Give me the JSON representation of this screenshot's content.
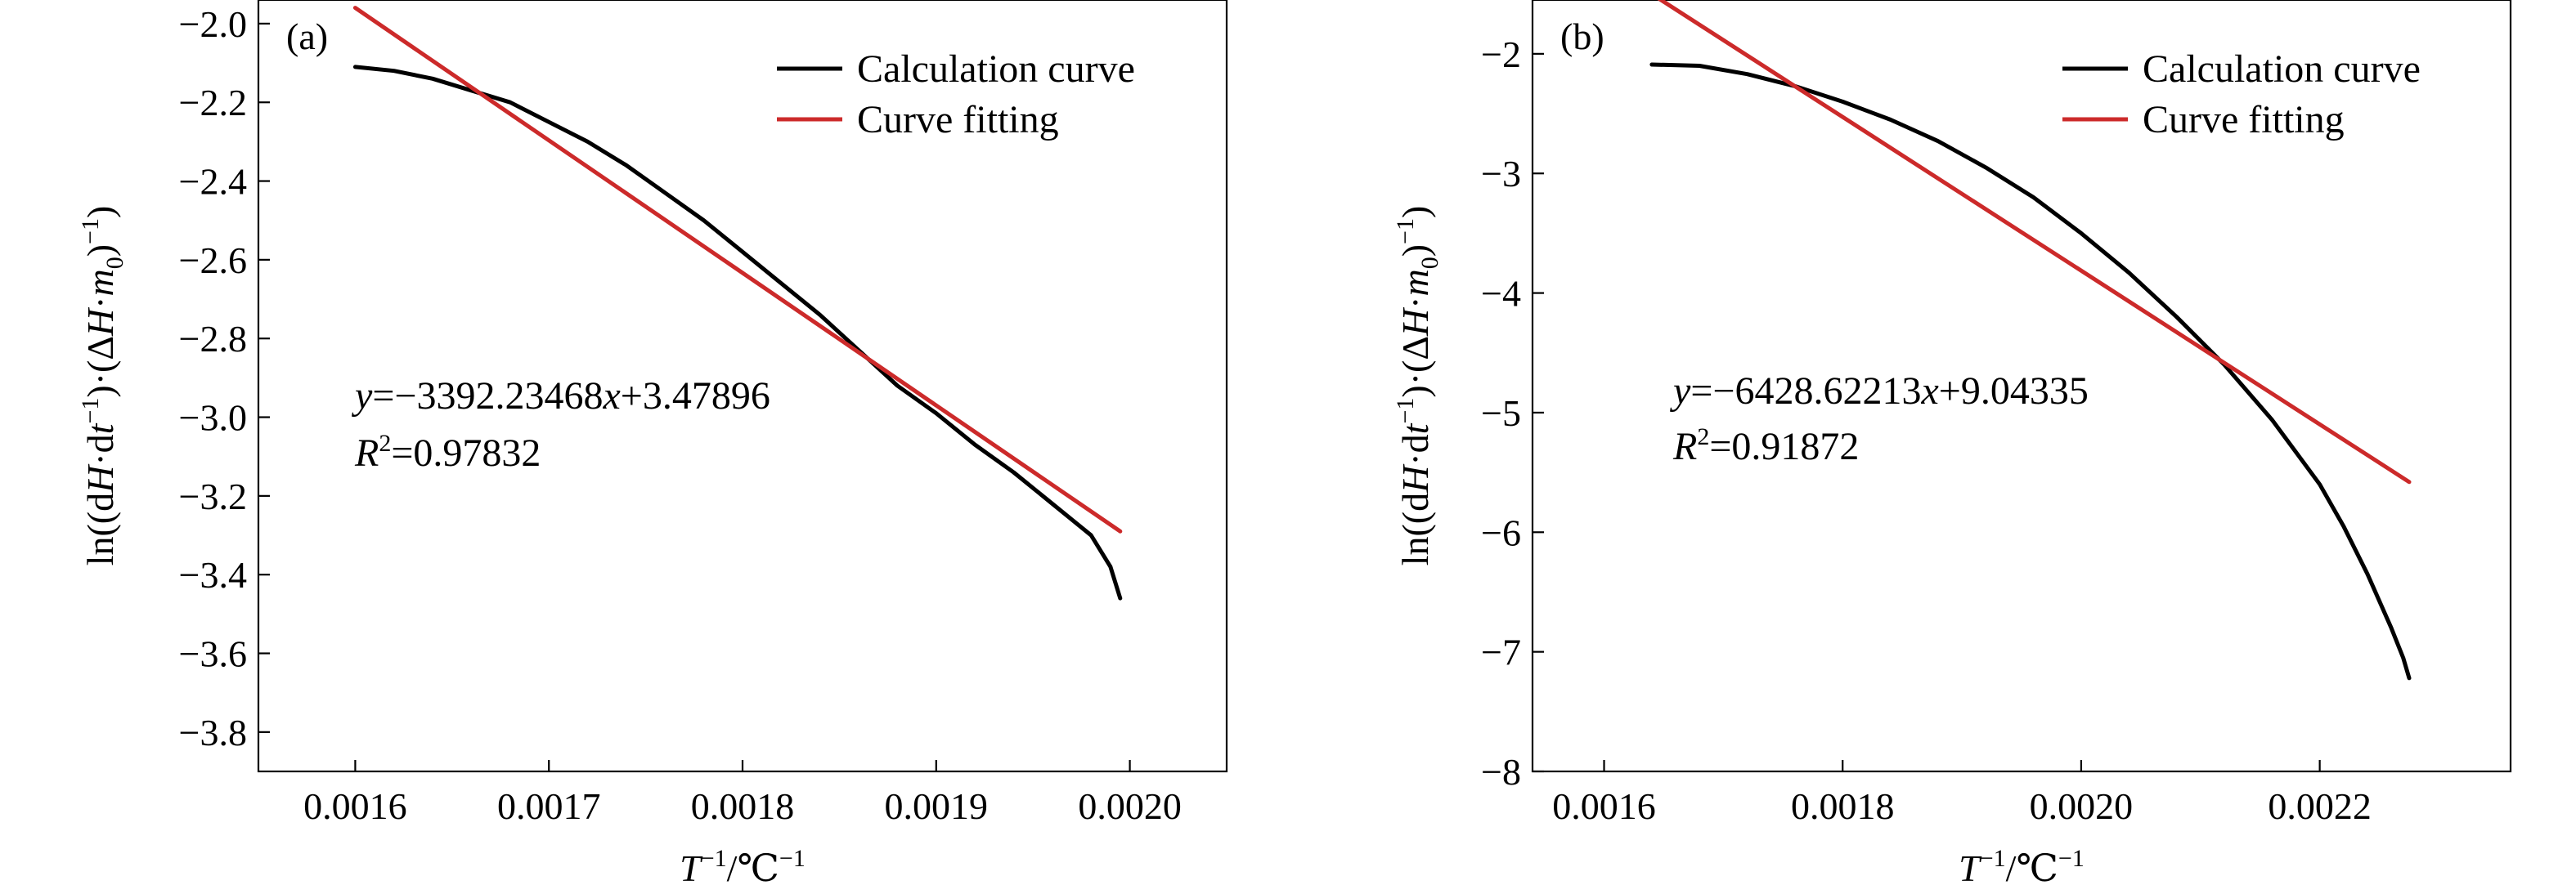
{
  "chart_data": [
    {
      "type": "line",
      "panel": "(a)",
      "xlabel_parts": [
        "T",
        "−1",
        "/℃",
        "−1"
      ],
      "ylabel_parts": [
        "ln((d",
        "H",
        "·d",
        "t",
        "−1",
        ")·(Δ",
        "H",
        "·",
        "m",
        "0",
        ")",
        "−1",
        ")"
      ],
      "xlim": [
        0.00155,
        0.00205
      ],
      "ylim": [
        -3.9,
        -1.94
      ],
      "xticks": [
        0.0016,
        0.0017,
        0.0018,
        0.0019,
        0.002
      ],
      "xtick_labels": [
        "0.0016",
        "0.0017",
        "0.0018",
        "0.0019",
        "0.0020"
      ],
      "yticks": [
        -2.0,
        -2.2,
        -2.4,
        -2.6,
        -2.8,
        -3.0,
        -3.2,
        -3.4,
        -3.6,
        -3.8
      ],
      "ytick_labels": [
        "−2.0",
        "−2.2",
        "−2.4",
        "−2.6",
        "−2.8",
        "−3.0",
        "−3.2",
        "−3.4",
        "−3.6",
        "−3.8"
      ],
      "legend_position": "top-right",
      "series": [
        {
          "name": "Calculation curve",
          "color": "#000000",
          "x": [
            0.0016,
            0.00162,
            0.00164,
            0.00166,
            0.00168,
            0.0017,
            0.00172,
            0.00174,
            0.00176,
            0.00178,
            0.0018,
            0.00182,
            0.00184,
            0.00186,
            0.00188,
            0.0019,
            0.00192,
            0.00194,
            0.00196,
            0.00198,
            0.00199,
            0.001995
          ],
          "y": [
            -2.11,
            -2.12,
            -2.14,
            -2.17,
            -2.2,
            -2.25,
            -2.3,
            -2.36,
            -2.43,
            -2.5,
            -2.58,
            -2.66,
            -2.74,
            -2.83,
            -2.92,
            -2.99,
            -3.07,
            -3.14,
            -3.22,
            -3.3,
            -3.38,
            -3.46
          ]
        },
        {
          "name": "Curve fitting",
          "color": "#cc2a2a",
          "x": [
            0.0016,
            0.001995
          ],
          "y": [
            -1.96,
            -3.29
          ]
        }
      ],
      "annotation": {
        "eq_prefix": "y",
        "eq_rest": "=−3392.23468",
        "eq_var": "x",
        "eq_const": "+3.47896",
        "r2_symbol": "R",
        "r2_sup": "2",
        "r2_value": "=0.97832"
      }
    },
    {
      "type": "line",
      "panel": "(b)",
      "xlabel_parts": [
        "T",
        "−1",
        "/℃",
        "−1"
      ],
      "ylabel_parts": [
        "ln((d",
        "H",
        "·d",
        "t",
        "−1",
        ")·(Δ",
        "H",
        "·",
        "m",
        "0",
        ")",
        "−1",
        ")"
      ],
      "xlim": [
        0.00154,
        0.00236
      ],
      "ylim": [
        -8.0,
        -1.55
      ],
      "xticks": [
        0.0016,
        0.0018,
        0.002,
        0.0022
      ],
      "xtick_labels": [
        "0.0016",
        "0.0018",
        "0.0020",
        "0.0022"
      ],
      "yticks": [
        -2,
        -3,
        -4,
        -5,
        -6,
        -7,
        -8
      ],
      "ytick_labels": [
        "−2",
        "−3",
        "−4",
        "−5",
        "−6",
        "−7",
        "−8"
      ],
      "legend_position": "top-right",
      "series": [
        {
          "name": "Calculation curve",
          "color": "#000000",
          "x": [
            0.00164,
            0.00168,
            0.00172,
            0.00176,
            0.0018,
            0.00184,
            0.00188,
            0.00192,
            0.00196,
            0.002,
            0.00204,
            0.00208,
            0.00212,
            0.00216,
            0.0022,
            0.00222,
            0.00224,
            0.00226,
            0.00227,
            0.002275
          ],
          "y": [
            -2.09,
            -2.1,
            -2.17,
            -2.27,
            -2.4,
            -2.55,
            -2.73,
            -2.95,
            -3.2,
            -3.5,
            -3.83,
            -4.2,
            -4.6,
            -5.06,
            -5.6,
            -5.95,
            -6.35,
            -6.8,
            -7.05,
            -7.22
          ]
        },
        {
          "name": "Curve fitting",
          "color": "#cc2a2a",
          "x": [
            0.00164,
            0.002275
          ],
          "y": [
            -1.5,
            -5.58
          ]
        }
      ],
      "annotation": {
        "eq_prefix": "y",
        "eq_rest": "=−6428.62213",
        "eq_var": "x",
        "eq_const": "+9.04335",
        "r2_symbol": "R",
        "r2_sup": "2",
        "r2_value": "=0.91872"
      }
    }
  ]
}
